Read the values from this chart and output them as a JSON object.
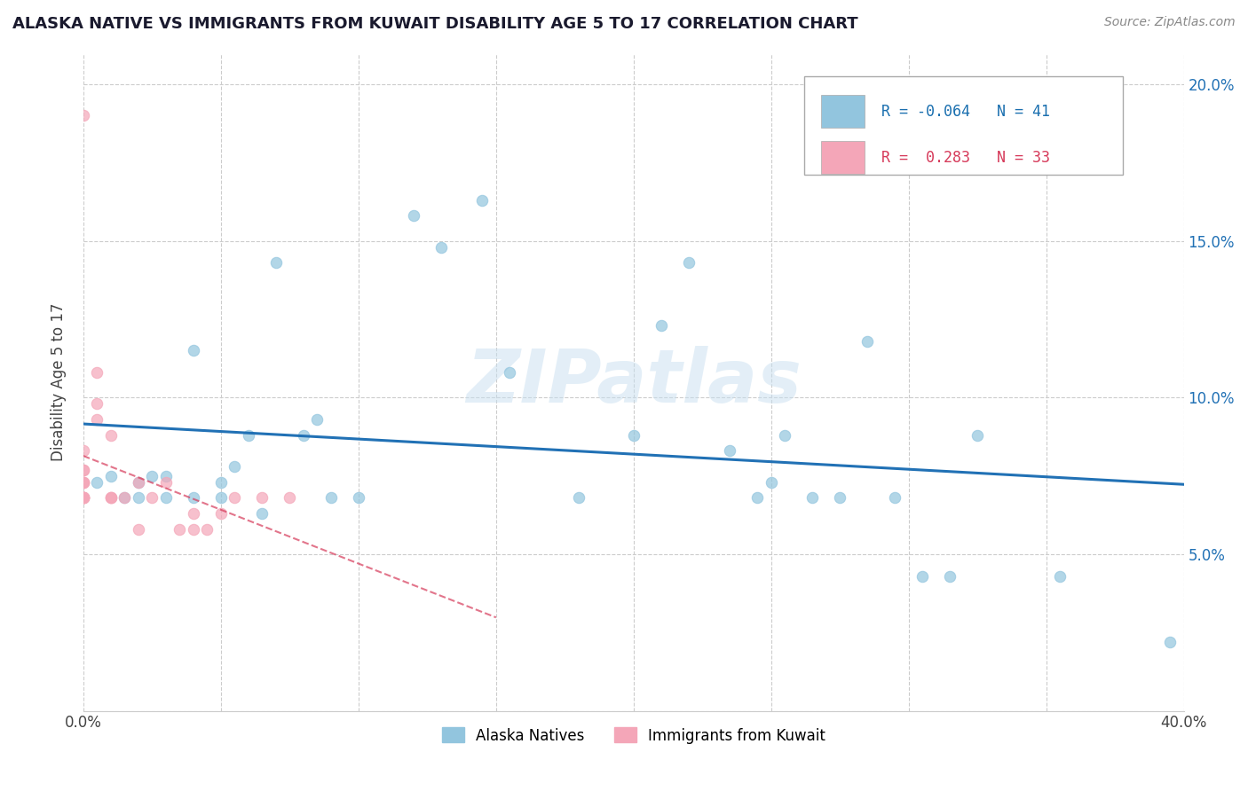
{
  "title": "ALASKA NATIVE VS IMMIGRANTS FROM KUWAIT DISABILITY AGE 5 TO 17 CORRELATION CHART",
  "source": "Source: ZipAtlas.com",
  "ylabel_label": "Disability Age 5 to 17",
  "xlim": [
    0.0,
    0.4
  ],
  "ylim": [
    0.0,
    0.21
  ],
  "xticks": [
    0.0,
    0.05,
    0.1,
    0.15,
    0.2,
    0.25,
    0.3,
    0.35,
    0.4
  ],
  "yticks": [
    0.0,
    0.05,
    0.1,
    0.15,
    0.2
  ],
  "blue_color": "#92c5de",
  "pink_color": "#f4a6b8",
  "trendline_blue": "#2171b5",
  "trendline_pink": "#d63a5a",
  "legend_r_blue": "-0.064",
  "legend_n_blue": "41",
  "legend_r_pink": "0.283",
  "legend_n_pink": "33",
  "blue_x": [
    0.005,
    0.01,
    0.015,
    0.02,
    0.02,
    0.025,
    0.03,
    0.03,
    0.04,
    0.04,
    0.05,
    0.05,
    0.055,
    0.06,
    0.065,
    0.07,
    0.08,
    0.085,
    0.09,
    0.1,
    0.12,
    0.13,
    0.145,
    0.155,
    0.18,
    0.2,
    0.21,
    0.22,
    0.235,
    0.245,
    0.25,
    0.255,
    0.265,
    0.275,
    0.285,
    0.295,
    0.305,
    0.315,
    0.325,
    0.355,
    0.395
  ],
  "blue_y": [
    0.073,
    0.075,
    0.068,
    0.068,
    0.073,
    0.075,
    0.068,
    0.075,
    0.068,
    0.115,
    0.068,
    0.073,
    0.078,
    0.088,
    0.063,
    0.143,
    0.088,
    0.093,
    0.068,
    0.068,
    0.158,
    0.148,
    0.163,
    0.108,
    0.068,
    0.088,
    0.123,
    0.143,
    0.083,
    0.068,
    0.073,
    0.088,
    0.068,
    0.068,
    0.118,
    0.068,
    0.043,
    0.043,
    0.088,
    0.043,
    0.022
  ],
  "pink_x": [
    0.0,
    0.0,
    0.0,
    0.0,
    0.0,
    0.0,
    0.0,
    0.0,
    0.0,
    0.0,
    0.0,
    0.0,
    0.0,
    0.005,
    0.005,
    0.005,
    0.01,
    0.01,
    0.01,
    0.01,
    0.015,
    0.02,
    0.02,
    0.025,
    0.03,
    0.035,
    0.04,
    0.04,
    0.045,
    0.05,
    0.055,
    0.065,
    0.075
  ],
  "pink_y": [
    0.068,
    0.073,
    0.068,
    0.073,
    0.077,
    0.068,
    0.068,
    0.073,
    0.068,
    0.083,
    0.068,
    0.077,
    0.19,
    0.108,
    0.098,
    0.093,
    0.088,
    0.068,
    0.068,
    0.068,
    0.068,
    0.073,
    0.058,
    0.068,
    0.073,
    0.058,
    0.058,
    0.063,
    0.058,
    0.063,
    0.068,
    0.068,
    0.068
  ],
  "watermark_text": "ZIPatlas",
  "background_color": "#ffffff",
  "grid_color": "#cccccc"
}
